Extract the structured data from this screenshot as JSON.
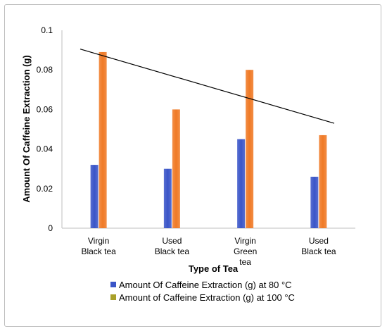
{
  "chart_data": {
    "type": "bar",
    "categories": [
      "Virgin Black tea",
      "Used Black tea",
      "Virgin Green tea",
      "Used Black tea"
    ],
    "category_lines": [
      [
        "Virgin",
        "Black tea"
      ],
      [
        "Used",
        "Black tea"
      ],
      [
        "Virgin",
        "Green",
        "tea"
      ],
      [
        "Used",
        "Black tea"
      ]
    ],
    "series": [
      {
        "name": "Amount Of Caffeine Extraction (g) at 80 °C",
        "values": [
          0.032,
          0.03,
          0.045,
          0.026
        ],
        "color": "#3a55c8"
      },
      {
        "name": "Amount of Caffeine Extraction (g) at 100 °C",
        "values": [
          0.089,
          0.06,
          0.08,
          0.047
        ],
        "color": "#f07a26"
      }
    ],
    "legend_swatch_colors": [
      "#3a55c8",
      "#a9a02a"
    ],
    "trendline": {
      "type": "linear",
      "series": "Amount of Caffeine Extraction (g) at 100 °C",
      "start": 0.0905,
      "end": 0.053,
      "color": "#000000"
    },
    "xlabel": "Type of Tea",
    "ylabel": "Amount Of Caffeine Extraction (g)",
    "ylim": [
      0,
      0.1
    ],
    "yticks": [
      "0",
      "0.02",
      "0.04",
      "0.06",
      "0.08",
      "0.1"
    ],
    "grid": false,
    "legend_position": "bottom"
  }
}
